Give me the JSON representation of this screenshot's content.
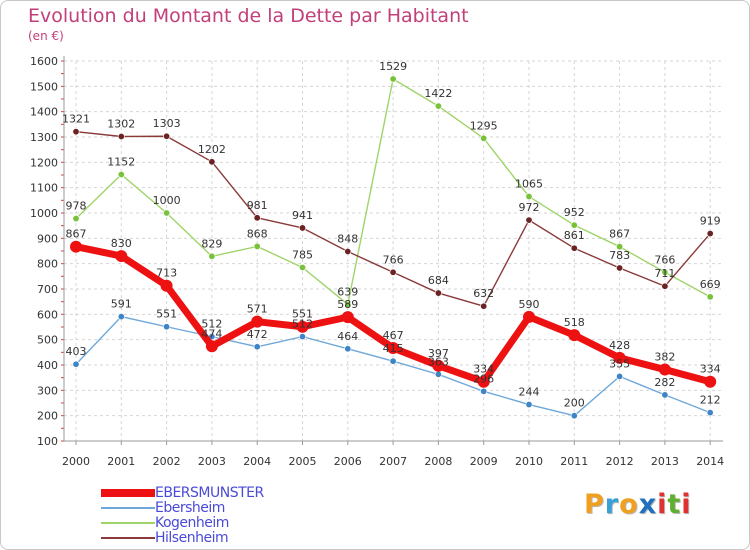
{
  "title": "Evolution du Montant de la Dette par Habitant",
  "subtitle": "(en €)",
  "logo": {
    "letters": [
      {
        "ch": "P",
        "color": "#f0a020"
      },
      {
        "ch": "r",
        "color": "#3aa0d8"
      },
      {
        "ch": "o",
        "color": "#f0a020"
      },
      {
        "ch": "x",
        "color": "#2070c0"
      },
      {
        "ch": "i",
        "color": "#e03030"
      },
      {
        "ch": "t",
        "color": "#60b030"
      },
      {
        "ch": "i",
        "color": "#e03030"
      }
    ]
  },
  "chart_data": {
    "type": "line",
    "x": [
      "2000",
      "2001",
      "2002",
      "2003",
      "2004",
      "2005",
      "2006",
      "2007",
      "2008",
      "2009",
      "2010",
      "2011",
      "2012",
      "2013",
      "2014"
    ],
    "ylim": [
      100,
      1600
    ],
    "yticks": [
      "100",
      "200",
      "300",
      "400",
      "500",
      "600",
      "700",
      "800",
      "900",
      "1000",
      "1100",
      "1200",
      "1300",
      "1400",
      "1500",
      "1600"
    ],
    "grid": true,
    "legend_position": "bottom-left",
    "series": [
      {
        "name": "EBERSMUNSTER",
        "color": "#ee1111",
        "marker": "#ee1111",
        "width": 7,
        "r": 6,
        "values": [
          867,
          830,
          713,
          474,
          571,
          551,
          589,
          467,
          397,
          334,
          590,
          518,
          428,
          382,
          334
        ],
        "labels": [
          "867",
          "830",
          "713",
          "474",
          "571",
          "551",
          "589",
          "467",
          "397",
          "334",
          "590",
          "518",
          "428",
          "382",
          "334"
        ]
      },
      {
        "name": "Ebersheim",
        "color": "#6fa8d8",
        "marker": "#3d85c6",
        "width": 1.4,
        "r": 3.2,
        "values": [
          403,
          591,
          551,
          512,
          472,
          512,
          464,
          415,
          363,
          296,
          244,
          200,
          355,
          282,
          212
        ],
        "labels": [
          "403",
          "591",
          "551",
          "512",
          "472",
          "512",
          "464",
          "415",
          "363",
          "296",
          "244",
          "200",
          "355",
          "282",
          "212"
        ]
      },
      {
        "name": "Kogenheim",
        "color": "#9fd46a",
        "marker": "#77c23a",
        "width": 1.4,
        "r": 3.2,
        "values": [
          978,
          1152,
          1000,
          829,
          868,
          785,
          639,
          1529,
          1422,
          1295,
          1065,
          952,
          867,
          766,
          669
        ],
        "labels": [
          "978",
          "1152",
          "1000",
          "829",
          "868",
          "785",
          "639",
          "1529",
          "1422",
          "1295",
          "1065",
          "952",
          "867",
          "766",
          "669"
        ]
      },
      {
        "name": "Hilsenheim",
        "color": "#8a3a3a",
        "marker": "#6b2222",
        "width": 1.4,
        "r": 3.2,
        "values": [
          1321,
          1302,
          1303,
          1202,
          981,
          941,
          848,
          766,
          684,
          632,
          972,
          861,
          783,
          711,
          919
        ],
        "labels": [
          "1321",
          "1302",
          "1303",
          "1202",
          "981",
          "941",
          "848",
          "766",
          "684",
          "632",
          "972",
          "861",
          "783",
          "711",
          "919"
        ]
      }
    ]
  }
}
